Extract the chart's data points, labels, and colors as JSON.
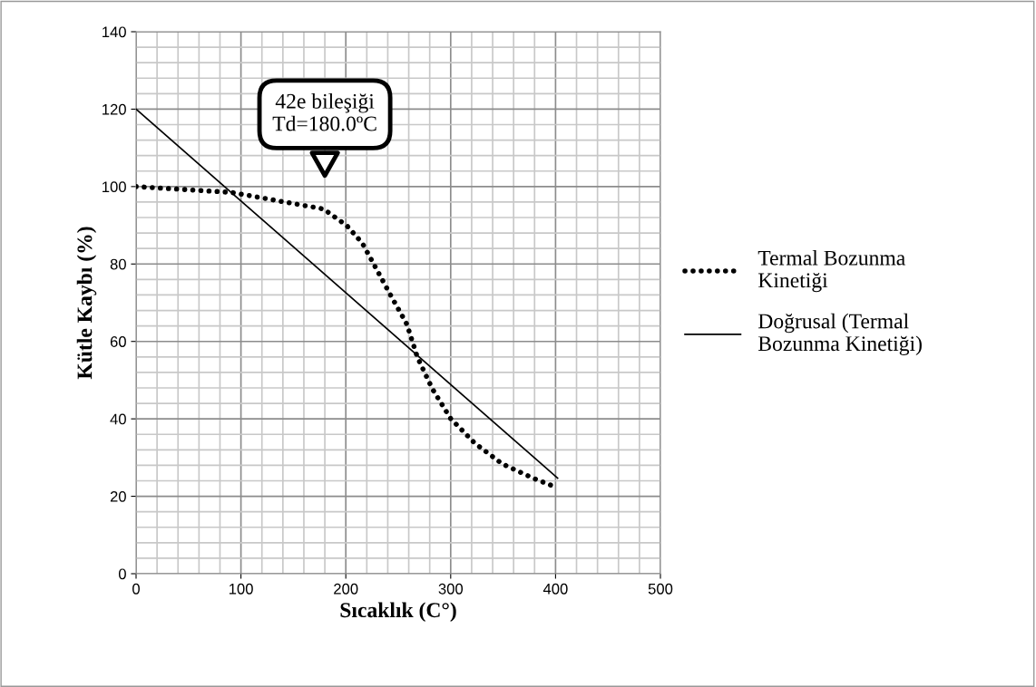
{
  "chart_data": {
    "type": "line",
    "xlabel": "Sıcaklık (C°)",
    "ylabel": "Kütle Kaybı (%)",
    "xlim": [
      0,
      500
    ],
    "xticks": [
      0,
      100,
      200,
      300,
      400,
      500
    ],
    "ylim": [
      0,
      140
    ],
    "yticks": [
      0,
      20,
      40,
      60,
      80,
      100,
      120,
      140
    ],
    "grid": true,
    "legend": "right",
    "series": [
      {
        "name": "Termal Bozunma Kinetiği",
        "color": "#000000",
        "line_style": "dotted",
        "x": [
          0,
          90.8,
          178.8,
          201,
          215.7,
          226.4,
          242.2,
          258.1,
          268.3,
          282.6,
          299.9,
          323,
          349,
          379.3,
          401.8
        ],
        "values": [
          100,
          98.5,
          94.2,
          89.9,
          85.4,
          80.1,
          72.2,
          64.5,
          55.9,
          47.7,
          40.1,
          33.7,
          28.4,
          24.6,
          22.2
        ]
      },
      {
        "name": "Doğrusal (Termal Bozunma Kinetiği)",
        "color": "#000000",
        "line_style": "solid",
        "x": [
          0,
          402
        ],
        "values": [
          120,
          24.7
        ]
      }
    ],
    "annotations": [
      "42e bileşiği\nTd=180.0ºC"
    ]
  }
}
